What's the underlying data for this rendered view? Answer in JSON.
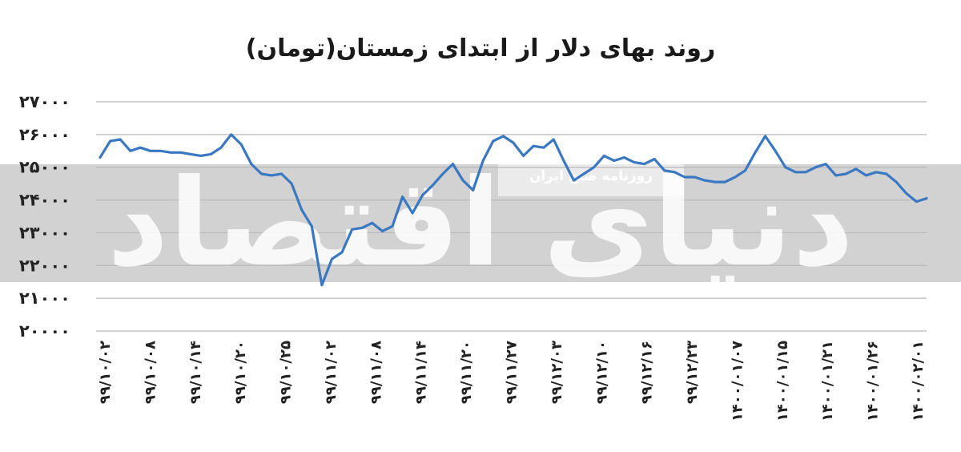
{
  "chart_data": {
    "type": "line",
    "title": "روند بهای دلار از ابتدای زمستان(تومان)",
    "xlabel": "",
    "ylabel": "",
    "ylim": [
      20000,
      27000
    ],
    "yticks": [
      27000,
      26000,
      25000,
      24000,
      23000,
      22000,
      21000,
      20000
    ],
    "ytick_labels": [
      "۲۷۰۰۰",
      "۲۶۰۰۰",
      "۲۵۰۰۰",
      "۲۴۰۰۰",
      "۲۳۰۰۰",
      "۲۲۰۰۰",
      "۲۱۰۰۰",
      "۲۰۰۰۰"
    ],
    "x_tick_labels": [
      "۹۹/۱۰/۰۲",
      "۹۹/۱۰/۰۸",
      "۹۹/۱۰/۱۴",
      "۹۹/۱۰/۲۰",
      "۹۹/۱۰/۲۵",
      "۹۹/۱۱/۰۲",
      "۹۹/۱۱/۰۸",
      "۹۹/۱۱/۱۴",
      "۹۹/۱۱/۲۰",
      "۹۹/۱۱/۲۷",
      "۹۹/۱۲/۰۳",
      "۹۹/۱۲/۱۰",
      "۹۹/۱۲/۱۶",
      "۹۹/۱۲/۲۳",
      "۱۴۰۰/۰۱/۰۷",
      "۱۴۰۰/۰۱/۱۵",
      "۱۴۰۰/۰۱/۲۱",
      "۱۴۰۰/۰۱/۲۶",
      "۱۴۰۰/۰۲/۰۱"
    ],
    "grid": true,
    "line_color": "#3a78c2",
    "series": [
      {
        "values": [
          25300,
          25800,
          25850,
          25500,
          25600,
          25500,
          25500,
          25450,
          25450,
          25400,
          25350,
          25400,
          25600,
          26000,
          25700,
          25100,
          24800,
          24750,
          24800,
          24500,
          23700,
          23200,
          21400,
          22200,
          22400,
          23100,
          23150,
          23300,
          23050,
          23200,
          24100,
          23600,
          24150,
          24450,
          24800,
          25100,
          24600,
          24300,
          25200,
          25800,
          25950,
          25750,
          25350,
          25650,
          25600,
          25850,
          25200,
          24600,
          24800,
          25000,
          25350,
          25200,
          25300,
          25150,
          25100,
          25250,
          24900,
          24850,
          24700,
          24700,
          24600,
          24550,
          24550,
          24700,
          24900,
          25450,
          25950,
          25500,
          25000,
          24850,
          24850,
          25000,
          25100,
          24750,
          24800,
          24950,
          24750,
          24850,
          24800,
          24550,
          24200,
          23950,
          24050
        ]
      }
    ]
  },
  "watermark": {
    "main_text": "دنیای اقتصاد",
    "band_text": "روزنامه صبح ایران"
  },
  "colors": {
    "band": "#d2d2d2",
    "grid": "#b8b8b8",
    "line": "#3a78c2"
  }
}
